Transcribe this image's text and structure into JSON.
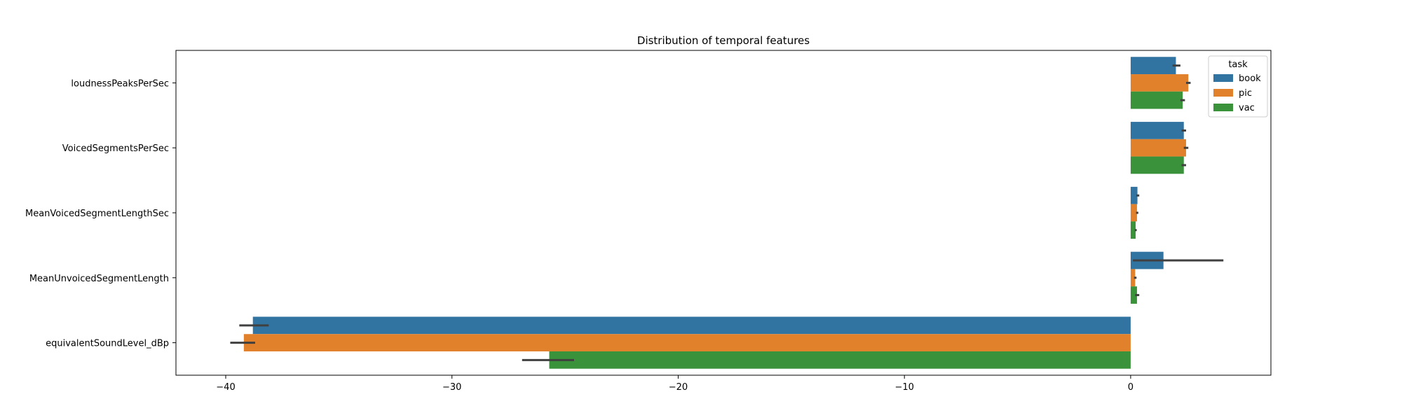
{
  "chart_data": {
    "type": "bar",
    "orientation": "horizontal",
    "title": "Distribution of temporal features",
    "xlabel": "",
    "ylabel": "",
    "categories": [
      "loudnessPeaksPerSec",
      "VoicedSegmentsPerSec",
      "MeanVoicedSegmentLengthSec",
      "MeanUnvoicedSegmentLength",
      "equivalentSoundLevel_dBp"
    ],
    "series": [
      {
        "name": "book",
        "color": "#3274a1",
        "values": [
          2.0,
          2.35,
          0.3,
          1.45,
          -38.8
        ],
        "error_low": [
          1.85,
          2.25,
          0.25,
          0.1,
          -39.4
        ],
        "error_high": [
          2.2,
          2.45,
          0.38,
          4.1,
          -38.1
        ]
      },
      {
        "name": "pic",
        "color": "#e1812c",
        "values": [
          2.55,
          2.45,
          0.28,
          0.2,
          -39.2
        ],
        "error_low": [
          2.45,
          2.35,
          0.24,
          0.15,
          -39.8
        ],
        "error_high": [
          2.65,
          2.55,
          0.34,
          0.26,
          -38.7
        ]
      },
      {
        "name": "vac",
        "color": "#3a923a",
        "values": [
          2.3,
          2.35,
          0.22,
          0.28,
          -25.7
        ],
        "error_low": [
          2.2,
          2.25,
          0.18,
          0.2,
          -26.9
        ],
        "error_high": [
          2.4,
          2.45,
          0.27,
          0.38,
          -24.6
        ]
      }
    ],
    "xlim": [
      -42.2,
      6.2
    ],
    "xticks": [
      -40,
      -30,
      -20,
      -10,
      0
    ],
    "xtick_labels": [
      "−40",
      "−30",
      "−20",
      "−10",
      "0"
    ],
    "legend": {
      "title": "task",
      "position": "top-right"
    },
    "grid": false
  }
}
